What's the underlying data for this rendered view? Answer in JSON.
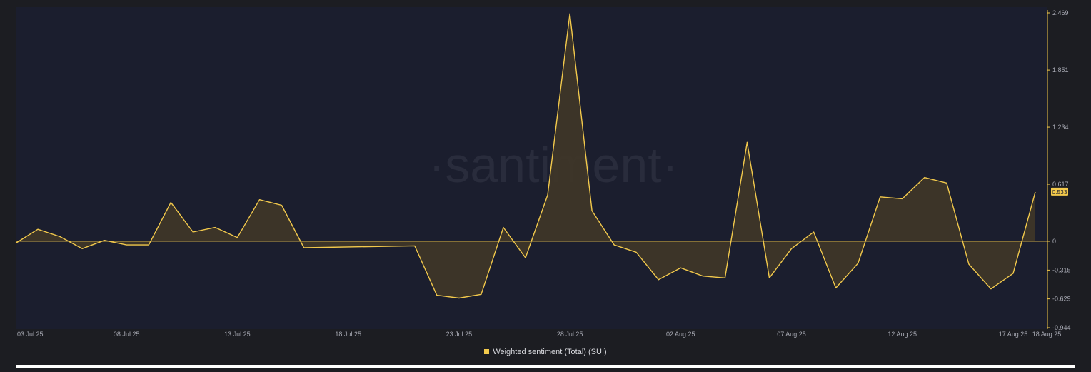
{
  "watermark": "·santiment·",
  "chart_data": {
    "type": "area",
    "series": [
      {
        "name": "Weighted sentiment (Total) (SUI)",
        "color": "#f2c94c",
        "last_value_label": "0.533",
        "x": [
          "03 Jul 25",
          "04 Jul 25",
          "05 Jul 25",
          "06 Jul 25",
          "07 Jul 25",
          "08 Jul 25",
          "09 Jul 25",
          "10 Jul 25",
          "11 Jul 25",
          "12 Jul 25",
          "13 Jul 25",
          "14 Jul 25",
          "15 Jul 25",
          "16 Jul 25",
          "21 Jul 25",
          "22 Jul 25",
          "23 Jul 25",
          "24 Jul 25",
          "25 Jul 25",
          "26 Jul 25",
          "27 Jul 25",
          "28 Jul 25",
          "29 Jul 25",
          "30 Jul 25",
          "31 Jul 25",
          "01 Aug 25",
          "02 Aug 25",
          "03 Aug 25",
          "04 Aug 25",
          "05 Aug 25",
          "06 Aug 25",
          "07 Aug 25",
          "08 Aug 25",
          "09 Aug 25",
          "10 Aug 25",
          "11 Aug 25",
          "12 Aug 25",
          "13 Aug 25",
          "14 Aug 25",
          "15 Aug 25",
          "16 Aug 25",
          "17 Aug 25",
          "18 Aug 25"
        ],
        "values": [
          -0.02,
          0.13,
          0.05,
          -0.08,
          0.01,
          -0.04,
          -0.04,
          0.42,
          0.1,
          0.15,
          0.04,
          0.45,
          0.39,
          -0.07,
          -0.05,
          -0.59,
          -0.62,
          -0.58,
          0.15,
          -0.18,
          0.5,
          2.46,
          0.33,
          -0.04,
          -0.12,
          -0.42,
          -0.29,
          -0.38,
          -0.4,
          1.07,
          -0.4,
          -0.08,
          0.1,
          -0.51,
          -0.24,
          0.48,
          0.46,
          0.69,
          0.63,
          -0.25,
          -0.52,
          -0.35,
          0.533
        ]
      }
    ],
    "x_ticks": [
      "03 Jul 25",
      "08 Jul 25",
      "13 Jul 25",
      "18 Jul 25",
      "23 Jul 25",
      "28 Jul 25",
      "02 Aug 25",
      "07 Aug 25",
      "12 Aug 25",
      "17 Aug 25",
      "18 Aug 25"
    ],
    "y_ticks": [
      "2.469",
      "1.851",
      "1.234",
      "0.617",
      "0",
      "-0.315",
      "-0.629",
      "-0.944"
    ],
    "y_scale": "piecewise-linear",
    "y_positive_range": [
      0,
      2.469
    ],
    "y_negative_range": [
      -0.944,
      0
    ],
    "grid": false,
    "legend_position": "bottom-center"
  }
}
